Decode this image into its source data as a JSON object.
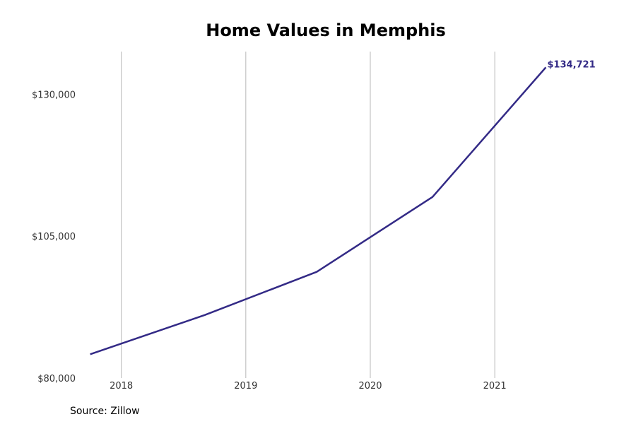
{
  "chart_data": {
    "type": "line",
    "title": "Home Values in Memphis",
    "xlabel": "",
    "ylabel": "",
    "x_ticks": [
      2018,
      2019,
      2020,
      2021
    ],
    "x_tick_labels": [
      "2018",
      "2019",
      "2020",
      "2021"
    ],
    "y_ticks": [
      80000,
      105000,
      130000
    ],
    "y_tick_labels": [
      "$80,000",
      "$105,000",
      "$130,000"
    ],
    "xlim": [
      2017.65,
      2021.93
    ],
    "ylim": [
      80000,
      137500
    ],
    "grid": "vertical",
    "line_color": "#332a86",
    "series": [
      {
        "x": [
          2017.75,
          2018.67,
          2019.57,
          2020.5,
          2021.41
        ],
        "values": [
          84200,
          91100,
          98700,
          111900,
          134721
        ]
      }
    ],
    "end_label": "$134,721"
  },
  "source": "Source: Zillow"
}
